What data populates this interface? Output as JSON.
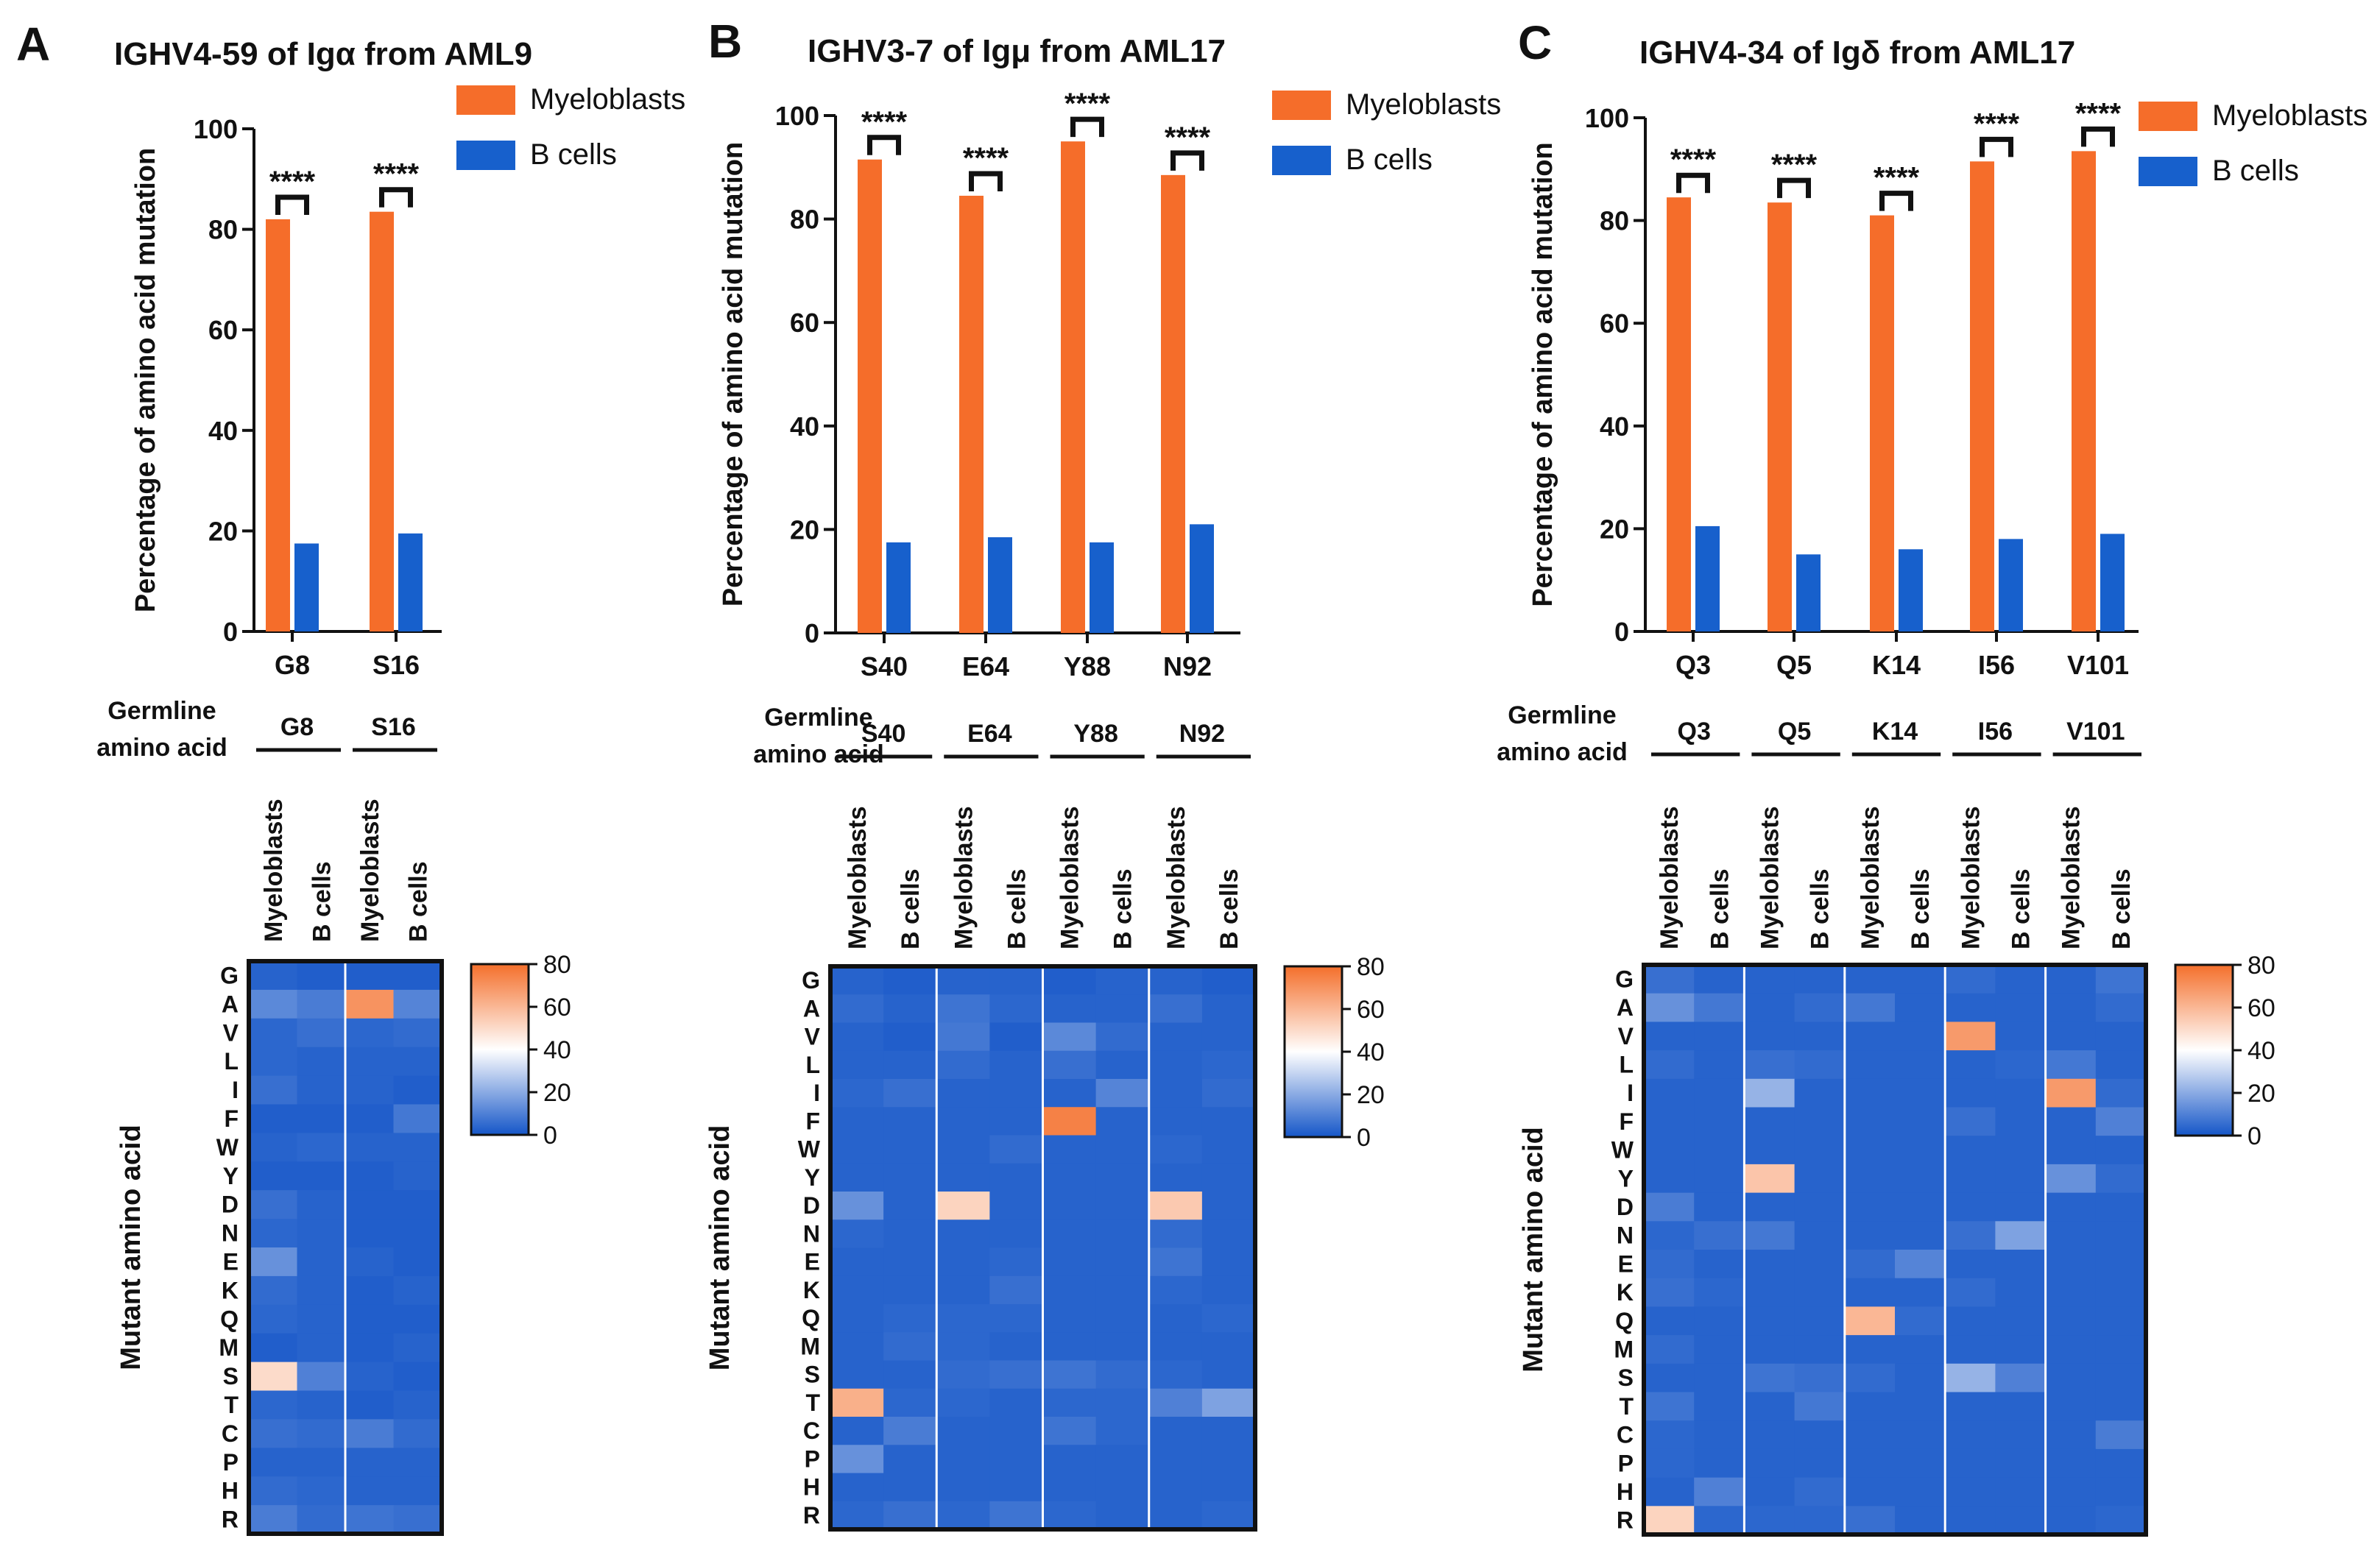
{
  "colors": {
    "myeloblasts": "#F56D2A",
    "bcells": "#1760CC",
    "heat_low": "#1556C8",
    "heat_mid": "#FFFFFF",
    "heat_high": "#F46F2B"
  },
  "axis_label": "Percentage of  amino acid mutation",
  "heatmap_ylabel": "Mutant amino acid",
  "germline_label": [
    "Germline",
    "amino acid"
  ],
  "mutant_amino_acids": [
    "G",
    "A",
    "V",
    "L",
    "I",
    "F",
    "W",
    "Y",
    "D",
    "N",
    "E",
    "K",
    "Q",
    "M",
    "S",
    "T",
    "C",
    "P",
    "H",
    "R"
  ],
  "legend": {
    "myeloblasts": "Myeloblasts",
    "bcells": "B cells"
  },
  "colorbar_ticks": [
    "80",
    "60",
    "40",
    "20",
    "0"
  ],
  "y_ticks": [
    "100",
    "80",
    "60",
    "40",
    "20",
    "0"
  ],
  "chart_data": [
    {
      "panel": "A",
      "title": "IGHV4-59 of Igα from AML9",
      "type": "bar",
      "ylabel": "Percentage of  amino acid mutation",
      "ylim": [
        0,
        100
      ],
      "categories": [
        "G8",
        "S16"
      ],
      "series": [
        {
          "name": "Myeloblasts",
          "values": [
            82,
            83.5
          ]
        },
        {
          "name": "B cells",
          "values": [
            17.5,
            19.5
          ]
        }
      ],
      "significance": [
        "****",
        "****"
      ],
      "heatmap": {
        "type": "heatmap",
        "rows": [
          "G",
          "A",
          "V",
          "L",
          "I",
          "F",
          "W",
          "Y",
          "D",
          "N",
          "E",
          "K",
          "Q",
          "M",
          "S",
          "T",
          "C",
          "P",
          "H",
          "R"
        ],
        "column_groups": [
          "G8",
          "S16"
        ],
        "column_labels": [
          "Myeloblasts",
          "B cells"
        ],
        "range": [
          0,
          80
        ],
        "values": [
          [
            3,
            2,
            2,
            2
          ],
          [
            12,
            9,
            70,
            11
          ],
          [
            4,
            6,
            4,
            5
          ],
          [
            4,
            3,
            3,
            3
          ],
          [
            6,
            3,
            3,
            2
          ],
          [
            2,
            2,
            2,
            8
          ],
          [
            3,
            4,
            3,
            3
          ],
          [
            2,
            2,
            2,
            3
          ],
          [
            6,
            3,
            2,
            2
          ],
          [
            4,
            3,
            2,
            2
          ],
          [
            14,
            3,
            3,
            2
          ],
          [
            5,
            3,
            2,
            3
          ],
          [
            4,
            3,
            2,
            2
          ],
          [
            2,
            3,
            2,
            3
          ],
          [
            50,
            10,
            3,
            2
          ],
          [
            4,
            3,
            2,
            3
          ],
          [
            6,
            5,
            9,
            5
          ],
          [
            3,
            3,
            3,
            3
          ],
          [
            5,
            4,
            3,
            3
          ],
          [
            9,
            5,
            7,
            6
          ]
        ]
      }
    },
    {
      "panel": "B",
      "title": "IGHV3-7 of Igμ from AML17",
      "type": "bar",
      "ylabel": "Percentage of  amino acid mutation",
      "ylim": [
        0,
        100
      ],
      "categories": [
        "S40",
        "E64",
        "Y88",
        "N92"
      ],
      "series": [
        {
          "name": "Myeloblasts",
          "values": [
            91.5,
            84.5,
            95,
            88.5
          ]
        },
        {
          "name": "B cells",
          "values": [
            17.5,
            18.5,
            17.5,
            21
          ]
        }
      ],
      "significance": [
        "****",
        "****",
        "****",
        "****"
      ],
      "heatmap": {
        "type": "heatmap",
        "rows": [
          "G",
          "A",
          "V",
          "L",
          "I",
          "F",
          "W",
          "Y",
          "D",
          "N",
          "E",
          "K",
          "Q",
          "M",
          "S",
          "T",
          "C",
          "P",
          "H",
          "R"
        ],
        "column_groups": [
          "S40",
          "E64",
          "Y88",
          "N92"
        ],
        "column_labels": [
          "Myeloblasts",
          "B cells"
        ],
        "range": [
          0,
          80
        ],
        "values": [
          [
            3,
            2,
            3,
            3,
            2,
            3,
            3,
            2
          ],
          [
            5,
            3,
            7,
            4,
            3,
            3,
            6,
            3
          ],
          [
            3,
            2,
            8,
            2,
            12,
            5,
            3,
            3
          ],
          [
            3,
            3,
            5,
            3,
            6,
            3,
            3,
            4
          ],
          [
            4,
            6,
            3,
            3,
            3,
            11,
            3,
            5
          ],
          [
            3,
            3,
            3,
            3,
            75,
            3,
            3,
            3
          ],
          [
            3,
            3,
            3,
            5,
            3,
            3,
            4,
            3
          ],
          [
            3,
            3,
            3,
            3,
            3,
            3,
            3,
            3
          ],
          [
            14,
            3,
            52,
            3,
            3,
            3,
            55,
            3
          ],
          [
            4,
            3,
            3,
            3,
            3,
            3,
            5,
            3
          ],
          [
            3,
            3,
            3,
            4,
            3,
            3,
            7,
            3
          ],
          [
            3,
            3,
            3,
            6,
            3,
            3,
            4,
            3
          ],
          [
            3,
            4,
            4,
            4,
            3,
            3,
            3,
            4
          ],
          [
            3,
            5,
            4,
            3,
            3,
            3,
            3,
            3
          ],
          [
            3,
            3,
            5,
            6,
            7,
            5,
            4,
            3
          ],
          [
            62,
            4,
            4,
            3,
            4,
            4,
            10,
            18
          ],
          [
            3,
            9,
            3,
            3,
            7,
            4,
            3,
            3
          ],
          [
            14,
            3,
            3,
            3,
            3,
            3,
            3,
            3
          ],
          [
            3,
            3,
            3,
            3,
            3,
            3,
            3,
            3
          ],
          [
            4,
            6,
            4,
            7,
            4,
            3,
            3,
            4
          ]
        ]
      }
    },
    {
      "panel": "C",
      "title": "IGHV4-34 of  Igδ from AML17",
      "type": "bar",
      "ylabel": "Percentage of  amino acid mutation",
      "ylim": [
        0,
        100
      ],
      "categories": [
        "Q3",
        "Q5",
        "K14",
        "I56",
        "V101"
      ],
      "series": [
        {
          "name": "Myeloblasts",
          "values": [
            84.5,
            83.5,
            81,
            91.5,
            93.5
          ]
        },
        {
          "name": "B cells",
          "values": [
            20.5,
            15,
            16,
            18,
            19
          ]
        }
      ],
      "significance": [
        "****",
        "****",
        "****",
        "****",
        "****"
      ],
      "heatmap": {
        "type": "heatmap",
        "rows": [
          "G",
          "A",
          "V",
          "L",
          "I",
          "F",
          "W",
          "Y",
          "D",
          "N",
          "E",
          "K",
          "Q",
          "M",
          "S",
          "T",
          "C",
          "P",
          "H",
          "R"
        ],
        "column_groups": [
          "Q3",
          "Q5",
          "K14",
          "I56",
          "V101"
        ],
        "column_labels": [
          "Myeloblasts",
          "B cells"
        ],
        "range": [
          0,
          80
        ],
        "values": [
          [
            6,
            3,
            3,
            3,
            3,
            3,
            5,
            3,
            3,
            7
          ],
          [
            14,
            8,
            3,
            5,
            8,
            3,
            3,
            3,
            3,
            5
          ],
          [
            3,
            3,
            3,
            3,
            3,
            3,
            68,
            3,
            3,
            3
          ],
          [
            5,
            3,
            6,
            5,
            3,
            3,
            3,
            4,
            8,
            3
          ],
          [
            3,
            3,
            22,
            3,
            3,
            3,
            3,
            3,
            68,
            5
          ],
          [
            3,
            3,
            3,
            3,
            3,
            3,
            6,
            3,
            3,
            10
          ],
          [
            3,
            3,
            3,
            3,
            3,
            3,
            3,
            3,
            3,
            3
          ],
          [
            3,
            3,
            56,
            3,
            3,
            3,
            3,
            3,
            14,
            5
          ],
          [
            9,
            3,
            3,
            3,
            3,
            3,
            3,
            3,
            3,
            3
          ],
          [
            4,
            6,
            8,
            3,
            3,
            3,
            6,
            18,
            3,
            3
          ],
          [
            5,
            3,
            3,
            3,
            5,
            11,
            3,
            3,
            3,
            3
          ],
          [
            6,
            4,
            3,
            3,
            3,
            3,
            5,
            3,
            3,
            3
          ],
          [
            3,
            3,
            3,
            3,
            60,
            5,
            3,
            3,
            3,
            3
          ],
          [
            5,
            3,
            3,
            3,
            3,
            3,
            3,
            3,
            3,
            3
          ],
          [
            3,
            3,
            7,
            6,
            5,
            3,
            22,
            10,
            3,
            3
          ],
          [
            7,
            3,
            3,
            8,
            3,
            3,
            3,
            3,
            3,
            3
          ],
          [
            4,
            3,
            3,
            3,
            3,
            3,
            3,
            3,
            3,
            9
          ],
          [
            4,
            3,
            3,
            3,
            3,
            3,
            3,
            3,
            3,
            3
          ],
          [
            3,
            10,
            3,
            5,
            3,
            3,
            3,
            3,
            3,
            3
          ],
          [
            52,
            4,
            4,
            4,
            6,
            3,
            3,
            3,
            3,
            4
          ]
        ]
      }
    }
  ]
}
